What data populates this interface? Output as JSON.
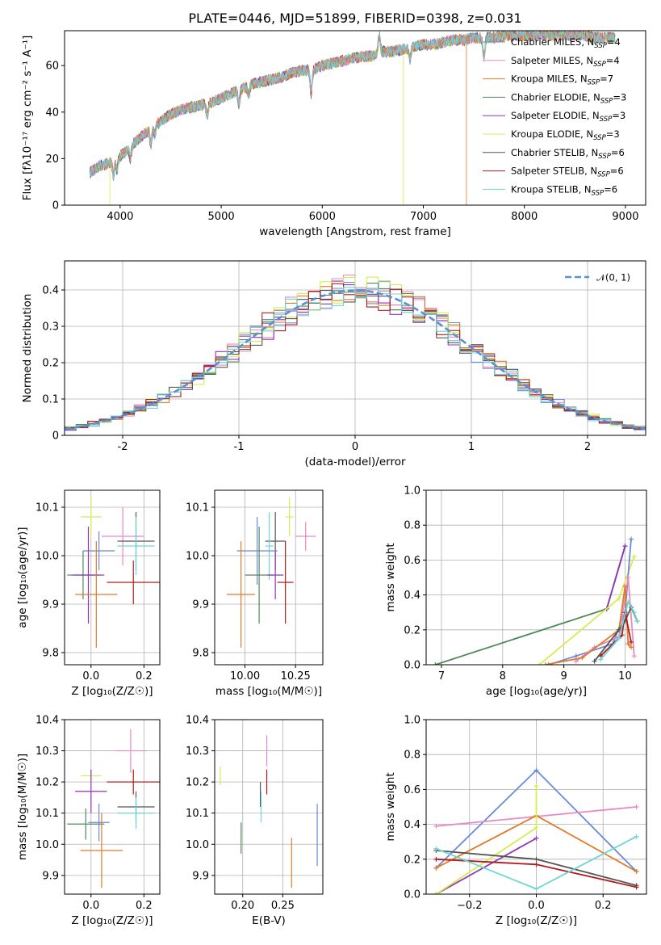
{
  "figure": {
    "title": "PLATE=0446, MJD=51899, FIBERID=0398, z=0.031"
  },
  "colors": {
    "Chabrier MILES": "#6a8bd8",
    "Salpeter MILES": "#e88ac4",
    "Kroupa MILES": "#e07b2a",
    "Chabrier ELODIE": "#4f8a5a",
    "Salpeter ELODIE": "#8e35b8",
    "Kroupa ELODIE": "#d8ec50",
    "Chabrier STELIB": "#555555",
    "Salpeter STELIB": "#b01c1c",
    "Kroupa STELIB": "#6ed5d5"
  },
  "chart_data": [
    {
      "id": "spectrum",
      "type": "line",
      "title": "PLATE=0446, MJD=51899, FIBERID=0398, z=0.031",
      "xlabel": "wavelength [Angstrom, rest frame]",
      "ylabel": "Flux [fλ10⁻¹⁷ erg cm⁻² s⁻¹ A⁻¹]",
      "xlim": [
        3450,
        9200
      ],
      "ylim": [
        0,
        75
      ],
      "xticks": [
        4000,
        5000,
        6000,
        7000,
        8000,
        9000
      ],
      "yticks": [
        0,
        20,
        40,
        60
      ],
      "grid": false,
      "legend_position": "top-right",
      "legend": [
        {
          "label": "Chabrier MILES, N",
          "sub": "SSP",
          "tail": "=4",
          "series": "Chabrier MILES"
        },
        {
          "label": "Salpeter MILES, N",
          "sub": "SSP",
          "tail": "=4",
          "series": "Salpeter MILES"
        },
        {
          "label": "Kroupa MILES, N",
          "sub": "SSP",
          "tail": "=7",
          "series": "Kroupa MILES"
        },
        {
          "label": "Chabrier ELODIE, N",
          "sub": "SSP",
          "tail": "=3",
          "series": "Chabrier ELODIE"
        },
        {
          "label": "Salpeter ELODIE, N",
          "sub": "SSP",
          "tail": "=3",
          "series": "Salpeter ELODIE"
        },
        {
          "label": "Kroupa ELODIE, N",
          "sub": "SSP",
          "tail": "=3",
          "series": "Kroupa ELODIE"
        },
        {
          "label": "Chabrier STELIB, N",
          "sub": "SSP",
          "tail": "=6",
          "series": "Chabrier STELIB"
        },
        {
          "label": "Salpeter STELIB, N",
          "sub": "SSP",
          "tail": "=6",
          "series": "Salpeter STELIB"
        },
        {
          "label": "Kroupa STELIB, N",
          "sub": "SSP",
          "tail": "=6",
          "series": "Kroupa STELIB"
        }
      ],
      "continuum": [
        [
          3700,
          14
        ],
        [
          3800,
          17
        ],
        [
          3900,
          18
        ],
        [
          4000,
          21
        ],
        [
          4100,
          25
        ],
        [
          4200,
          29
        ],
        [
          4300,
          33
        ],
        [
          4400,
          36
        ],
        [
          4500,
          39
        ],
        [
          4600,
          41
        ],
        [
          4700,
          42
        ],
        [
          4800,
          43
        ],
        [
          4900,
          44
        ],
        [
          5000,
          46
        ],
        [
          5100,
          48
        ],
        [
          5200,
          50
        ],
        [
          5300,
          52
        ],
        [
          5400,
          53
        ],
        [
          5500,
          54
        ],
        [
          5600,
          55
        ],
        [
          5700,
          57
        ],
        [
          5800,
          58
        ],
        [
          5900,
          58
        ],
        [
          6000,
          60
        ],
        [
          6100,
          61
        ],
        [
          6200,
          62
        ],
        [
          6300,
          63
        ],
        [
          6400,
          64
        ],
        [
          6500,
          64
        ],
        [
          6600,
          66
        ],
        [
          6700,
          66
        ],
        [
          6800,
          67
        ],
        [
          6900,
          68
        ],
        [
          7000,
          69
        ],
        [
          7100,
          69
        ],
        [
          7200,
          70
        ],
        [
          7300,
          71
        ],
        [
          7400,
          71
        ],
        [
          7500,
          72
        ],
        [
          7600,
          72
        ],
        [
          7700,
          72
        ],
        [
          7800,
          73
        ],
        [
          7900,
          73
        ],
        [
          8000,
          73
        ],
        [
          8100,
          73
        ],
        [
          8200,
          73
        ],
        [
          8300,
          73
        ],
        [
          8400,
          73
        ],
        [
          8500,
          73
        ],
        [
          8600,
          73
        ],
        [
          8700,
          72
        ],
        [
          8800,
          72
        ],
        [
          8900,
          72
        ],
        [
          9000,
          73
        ]
      ],
      "absorption_lines": [
        [
          3934,
          6
        ],
        [
          3969,
          5
        ],
        [
          4102,
          5
        ],
        [
          4304,
          7
        ],
        [
          4341,
          4
        ],
        [
          4861,
          5
        ],
        [
          5175,
          6
        ],
        [
          5270,
          4
        ],
        [
          5890,
          10
        ],
        [
          6563,
          -8
        ],
        [
          6867,
          5
        ],
        [
          7600,
          8
        ]
      ],
      "dropouts": [
        {
          "series": "Kroupa ELODIE",
          "x": 3900
        },
        {
          "series": "Kroupa ELODIE",
          "x": 6800
        },
        {
          "series": "Kroupa MILES",
          "x": 7425
        }
      ]
    },
    {
      "id": "residual_hist",
      "type": "histogram",
      "xlabel": "(data-model)/error",
      "ylabel": "Normed distribution",
      "xlim": [
        -2.5,
        2.5
      ],
      "ylim": [
        0,
        0.48
      ],
      "xticks": [
        -2,
        -1,
        0,
        1,
        2
      ],
      "yticks": [
        0.0,
        0.1,
        0.2,
        0.3,
        0.4
      ],
      "grid": true,
      "legend_position": "top-right",
      "legend_label": "𝒩(0, 1)",
      "bin_width": 0.1,
      "reference_curve": "N(0,1)",
      "series_order": [
        "Chabrier MILES",
        "Salpeter MILES",
        "Kroupa MILES",
        "Chabrier ELODIE",
        "Salpeter ELODIE",
        "Kroupa ELODIE",
        "Chabrier STELIB",
        "Salpeter STELIB",
        "Kroupa STELIB"
      ]
    },
    {
      "id": "age_vs_Z",
      "type": "scatter",
      "error_bars": true,
      "xlabel": "Z [log₁₀(Z/Z☉)]",
      "ylabel": "age  [log₁₀(age/yr)]",
      "xlim": [
        -0.1,
        0.26
      ],
      "ylim": [
        9.775,
        10.135
      ],
      "xticks": [
        0.0,
        0.2
      ],
      "xticklabels": [
        "0.0",
        "0.2"
      ],
      "yticks": [
        9.8,
        9.9,
        10.0,
        10.1
      ],
      "yticklabels": [
        "9.8",
        "9.9",
        "10.0",
        "10.1"
      ],
      "grid": true,
      "points": [
        {
          "series": "Kroupa ELODIE",
          "x": 0.0,
          "xerr": 0.04,
          "y": 10.08,
          "yerr": 0.04
        },
        {
          "series": "Salpeter MILES",
          "x": 0.12,
          "xerr": 0.08,
          "y": 10.04,
          "yerr": 0.06
        },
        {
          "series": "Chabrier STELIB",
          "x": 0.17,
          "xerr": 0.07,
          "y": 10.03,
          "yerr": 0.06
        },
        {
          "series": "Kroupa STELIB",
          "x": 0.17,
          "xerr": 0.07,
          "y": 10.02,
          "yerr": 0.06
        },
        {
          "series": "Chabrier MILES",
          "x": 0.03,
          "xerr": 0.06,
          "y": 10.01,
          "yerr": 0.04
        },
        {
          "series": "Chabrier ELODIE",
          "x": -0.03,
          "xerr": 0.06,
          "y": 9.96,
          "yerr": 0.05
        },
        {
          "series": "Salpeter ELODIE",
          "x": -0.01,
          "xerr": 0.06,
          "y": 9.96,
          "yerr": 0.1
        },
        {
          "series": "Salpeter STELIB",
          "x": 0.16,
          "xerr": 0.1,
          "y": 9.945,
          "yerr": 0.045
        },
        {
          "series": "Kroupa MILES",
          "x": 0.02,
          "xerr": 0.08,
          "y": 9.92,
          "yerr": 0.11
        }
      ]
    },
    {
      "id": "age_vs_mass",
      "type": "scatter",
      "error_bars": true,
      "xlabel": "mass [log₁₀(M/M☉)]",
      "ylabel": "",
      "xlim": [
        9.85,
        10.385
      ],
      "ylim": [
        9.775,
        10.135
      ],
      "xticks": [
        10.0,
        10.25
      ],
      "xticklabels": [
        "10.00",
        "10.25"
      ],
      "yticks": [
        9.8,
        9.9,
        10.0,
        10.1
      ],
      "yticklabels": [
        "9.8",
        "9.9",
        "10.0",
        "10.1"
      ],
      "grid": true,
      "points": [
        {
          "series": "Kroupa ELODIE",
          "x": 10.22,
          "xerr": 0.02,
          "y": 10.08,
          "yerr": 0.04
        },
        {
          "series": "Salpeter MILES",
          "x": 10.3,
          "xerr": 0.05,
          "y": 10.04,
          "yerr": 0.03
        },
        {
          "series": "Chabrier STELIB",
          "x": 10.15,
          "xerr": 0.05,
          "y": 10.03,
          "yerr": 0.06
        },
        {
          "series": "Kroupa STELIB",
          "x": 10.12,
          "xerr": 0.02,
          "y": 10.02,
          "yerr": 0.07
        },
        {
          "series": "Chabrier MILES",
          "x": 10.06,
          "xerr": 0.1,
          "y": 10.01,
          "yerr": 0.07
        },
        {
          "series": "Chabrier ELODIE",
          "x": 10.07,
          "xerr": 0.07,
          "y": 9.96,
          "yerr": 0.1
        },
        {
          "series": "Salpeter ELODIE",
          "x": 10.15,
          "xerr": 0.04,
          "y": 9.96,
          "yerr": 0.05
        },
        {
          "series": "Salpeter STELIB",
          "x": 10.2,
          "xerr": 0.04,
          "y": 9.945,
          "yerr": 0.085
        },
        {
          "series": "Kroupa MILES",
          "x": 9.98,
          "xerr": 0.07,
          "y": 9.92,
          "yerr": 0.11
        }
      ]
    },
    {
      "id": "mass_weight_vs_age",
      "type": "line",
      "xlabel": "age  [log₁₀(age/yr)]",
      "ylabel": "mass weight",
      "xlim": [
        6.75,
        10.35
      ],
      "ylim": [
        0,
        1.0
      ],
      "xticks": [
        7,
        8,
        9,
        10
      ],
      "yticks": [
        0.0,
        0.2,
        0.4,
        0.6,
        0.8,
        1.0
      ],
      "yticklabels": [
        "0.0",
        "0.2",
        "0.4",
        "0.6",
        "0.8",
        "1.0"
      ],
      "grid": true,
      "series": [
        {
          "name": "Chabrier ELODIE",
          "x": [
            6.9,
            9.7,
            10.0
          ],
          "y": [
            0.0,
            0.32,
            0.68
          ]
        },
        {
          "name": "Salpeter ELODIE",
          "x": [
            9.7,
            10.0
          ],
          "y": [
            0.32,
            0.68
          ]
        },
        {
          "name": "Kroupa ELODIE",
          "x": [
            8.6,
            9.9,
            10.15
          ],
          "y": [
            0.0,
            0.38,
            0.62
          ]
        },
        {
          "name": "Chabrier MILES",
          "x": [
            8.75,
            9.2,
            9.8,
            10.0,
            10.1
          ],
          "y": [
            0.0,
            0.05,
            0.12,
            0.3,
            0.72
          ]
        },
        {
          "name": "Salpeter MILES",
          "x": [
            9.2,
            9.5,
            9.9,
            10.05,
            10.15
          ],
          "y": [
            0.02,
            0.1,
            0.16,
            0.5,
            0.05
          ]
        },
        {
          "name": "Kroupa MILES",
          "x": [
            8.7,
            9.3,
            9.9,
            10.0,
            10.05,
            10.1
          ],
          "y": [
            0.0,
            0.04,
            0.2,
            0.45,
            0.12,
            0.1
          ]
        },
        {
          "name": "Chabrier STELIB",
          "x": [
            9.5,
            9.9,
            10.0,
            10.1,
            10.2
          ],
          "y": [
            0.02,
            0.2,
            0.25,
            0.33,
            0.25
          ]
        },
        {
          "name": "Salpeter STELIB",
          "x": [
            9.6,
            9.95,
            10.0,
            10.1
          ],
          "y": [
            0.05,
            0.17,
            0.3,
            0.13
          ]
        },
        {
          "name": "Kroupa STELIB",
          "x": [
            9.6,
            9.9,
            10.05,
            10.15,
            10.2
          ],
          "y": [
            0.03,
            0.15,
            0.36,
            0.3,
            0.25
          ]
        }
      ]
    },
    {
      "id": "mass_vs_Z",
      "type": "scatter",
      "error_bars": true,
      "xlabel": "Z [log₁₀(Z/Z☉)]",
      "ylabel": "mass [log₁₀(M/M☉)]",
      "xlim": [
        -0.1,
        0.26
      ],
      "ylim": [
        9.84,
        10.4
      ],
      "xticks": [
        0.0,
        0.2
      ],
      "xticklabels": [
        "0.0",
        "0.2"
      ],
      "yticks": [
        9.9,
        10.0,
        10.1,
        10.2,
        10.3,
        10.4
      ],
      "yticklabels": [
        "9.9",
        "10.0",
        "10.1",
        "10.2",
        "10.3",
        "10.4"
      ],
      "grid": true,
      "points": [
        {
          "series": "Salpeter MILES",
          "x": 0.15,
          "xerr": 0.06,
          "y": 10.3,
          "yerr": 0.07
        },
        {
          "series": "Kroupa ELODIE",
          "x": 0.0,
          "xerr": 0.04,
          "y": 10.22,
          "yerr": 0.02
        },
        {
          "series": "Salpeter STELIB",
          "x": 0.16,
          "xerr": 0.1,
          "y": 10.2,
          "yerr": 0.04
        },
        {
          "series": "Salpeter ELODIE",
          "x": 0.0,
          "xerr": 0.06,
          "y": 10.17,
          "yerr": 0.07
        },
        {
          "series": "Chabrier STELIB",
          "x": 0.17,
          "xerr": 0.07,
          "y": 10.12,
          "yerr": 0.05
        },
        {
          "series": "Kroupa STELIB",
          "x": 0.17,
          "xerr": 0.07,
          "y": 10.1,
          "yerr": 0.05
        },
        {
          "series": "Chabrier MILES",
          "x": 0.03,
          "xerr": 0.04,
          "y": 10.07,
          "yerr": 0.06
        },
        {
          "series": "Chabrier ELODIE",
          "x": -0.02,
          "xerr": 0.07,
          "y": 10.065,
          "yerr": 0.05
        },
        {
          "series": "Kroupa MILES",
          "x": 0.04,
          "xerr": 0.08,
          "y": 9.98,
          "yerr": 0.12
        }
      ]
    },
    {
      "id": "mass_vs_ebv",
      "type": "scatter",
      "error_bars": true,
      "xlabel": "E(B-V)",
      "ylabel": "",
      "xlim": [
        0.165,
        0.3
      ],
      "ylim": [
        9.84,
        10.4
      ],
      "xticks": [
        0.2,
        0.25
      ],
      "xticklabels": [
        "0.20",
        "0.25"
      ],
      "yticks": [
        9.9,
        10.0,
        10.1,
        10.2,
        10.3,
        10.4
      ],
      "yticklabels": [
        "9.9",
        "10.0",
        "10.1",
        "10.2",
        "10.3",
        "10.4"
      ],
      "grid": true,
      "points": [
        {
          "series": "Salpeter MILES",
          "x": 0.23,
          "xerr": 0.0,
          "y": 10.3,
          "yerr": 0.05
        },
        {
          "series": "Kroupa ELODIE",
          "x": 0.172,
          "xerr": 0.0,
          "y": 10.22,
          "yerr": 0.03
        },
        {
          "series": "Salpeter STELIB",
          "x": 0.23,
          "xerr": 0.0,
          "y": 10.2,
          "yerr": 0.04
        },
        {
          "series": "Chabrier STELIB",
          "x": 0.222,
          "xerr": 0.0,
          "y": 10.16,
          "yerr": 0.04
        },
        {
          "series": "Kroupa STELIB",
          "x": 0.223,
          "xerr": 0.0,
          "y": 10.12,
          "yerr": 0.05
        },
        {
          "series": "Chabrier ELODIE",
          "x": 0.198,
          "xerr": 0.0,
          "y": 10.02,
          "yerr": 0.05
        },
        {
          "series": "Chabrier MILES",
          "x": 0.293,
          "xerr": 0.0,
          "y": 10.03,
          "yerr": 0.1
        },
        {
          "series": "Kroupa MILES",
          "x": 0.261,
          "xerr": 0.0,
          "y": 9.94,
          "yerr": 0.08
        }
      ]
    },
    {
      "id": "mass_weight_vs_Z",
      "type": "line",
      "xlabel": "Z [log₁₀(Z/Z☉)]",
      "ylabel": "mass weight",
      "xlim": [
        -0.33,
        0.33
      ],
      "ylim": [
        0,
        1.0
      ],
      "xticks": [
        -0.2,
        0.0,
        0.2
      ],
      "xticklabels": [
        "−0.2",
        "0.0",
        "0.2"
      ],
      "yticks": [
        0.0,
        0.2,
        0.4,
        0.6,
        0.8,
        1.0
      ],
      "yticklabels": [
        "0.0",
        "0.2",
        "0.4",
        "0.6",
        "0.8",
        "1.0"
      ],
      "grid": true,
      "series": [
        {
          "name": "Chabrier MILES",
          "x": [
            -0.3,
            0.0,
            0.3
          ],
          "y": [
            0.15,
            0.71,
            0.13
          ]
        },
        {
          "name": "Salpeter MILES",
          "x": [
            -0.3,
            0.3
          ],
          "y": [
            0.39,
            0.5
          ]
        },
        {
          "name": "Kroupa MILES",
          "x": [
            -0.3,
            0.0,
            0.3
          ],
          "y": [
            0.15,
            0.45,
            0.13
          ]
        },
        {
          "name": "Salpeter ELODIE",
          "x": [
            -0.3,
            0.0
          ],
          "y": [
            0.0,
            0.32
          ]
        },
        {
          "name": "Kroupa ELODIE",
          "x": [
            -0.3,
            0.0,
            0.0
          ],
          "y": [
            0.0,
            0.38,
            0.62
          ]
        },
        {
          "name": "Chabrier STELIB",
          "x": [
            -0.3,
            0.0,
            0.3
          ],
          "y": [
            0.25,
            0.2,
            0.05
          ]
        },
        {
          "name": "Salpeter STELIB",
          "x": [
            -0.3,
            0.0,
            0.3
          ],
          "y": [
            0.2,
            0.17,
            0.04
          ]
        },
        {
          "name": "Kroupa STELIB",
          "x": [
            -0.3,
            0.0,
            0.3
          ],
          "y": [
            0.26,
            0.03,
            0.33
          ]
        }
      ]
    }
  ]
}
